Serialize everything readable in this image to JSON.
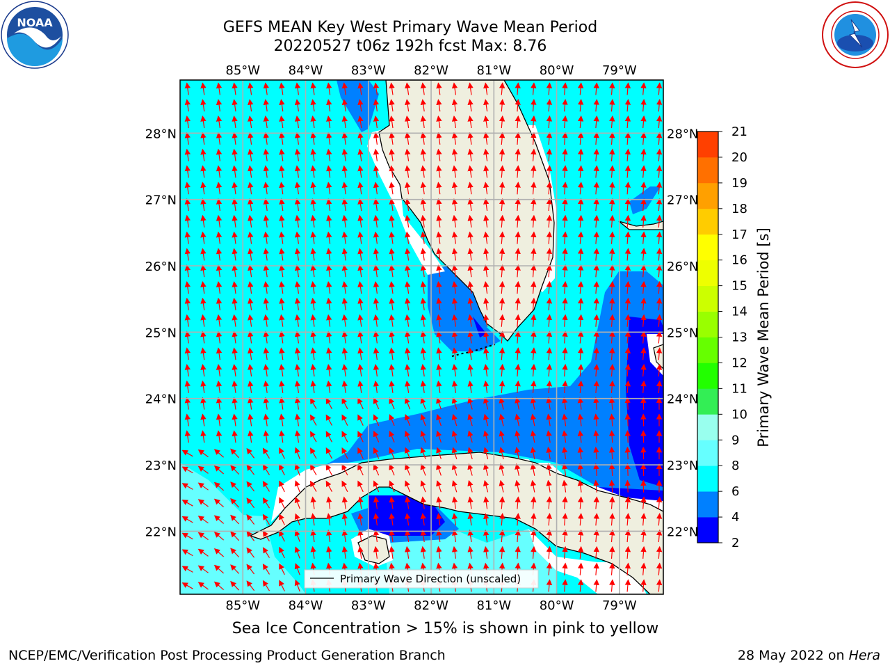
{
  "title_line1": "GEFS MEAN Key West Primary Wave Mean Period",
  "title_line2": "20220527 t06z 192h fcst   Max: 8.76",
  "caption": "Sea Ice Concentration > 15% is shown in pink to yellow",
  "footer_left": "NCEP/EMC/Verification Post Processing Product Generation Branch",
  "footer_right_date": "28 May 2022 on ",
  "footer_right_machine": "Hera",
  "legend_label": "Primary Wave Direction (unscaled)",
  "logos": {
    "left": "noaa-logo",
    "left_text": "NOAA",
    "right": "nws-logo"
  },
  "map": {
    "lon_ticks": [
      "85°W",
      "84°W",
      "83°W",
      "82°W",
      "81°W",
      "80°W",
      "79°W"
    ],
    "lat_ticks": [
      "28°N",
      "27°N",
      "26°N",
      "25°N",
      "24°N",
      "23°N",
      "22°N"
    ],
    "lon_range": [
      -86.0,
      -78.3
    ],
    "lat_range": [
      21.05,
      28.8
    ],
    "arrow_color": "#ff0000"
  },
  "colorbar": {
    "label": "Primary Wave Mean Period [s]",
    "ticks": [
      "2",
      "4",
      "6",
      "8",
      "9",
      "10",
      "11",
      "12",
      "13",
      "14",
      "15",
      "16",
      "17",
      "18",
      "19",
      "20",
      "21"
    ],
    "colors": [
      "#0000ff",
      "#0080ff",
      "#00ffff",
      "#66ffff",
      "#99ffee",
      "#33ee55",
      "#22ff00",
      "#66ff00",
      "#99ff00",
      "#ccff00",
      "#eeff00",
      "#ffff00",
      "#ffcc00",
      "#ffa000",
      "#ff7000",
      "#ff4000",
      "#ff0000"
    ]
  }
}
